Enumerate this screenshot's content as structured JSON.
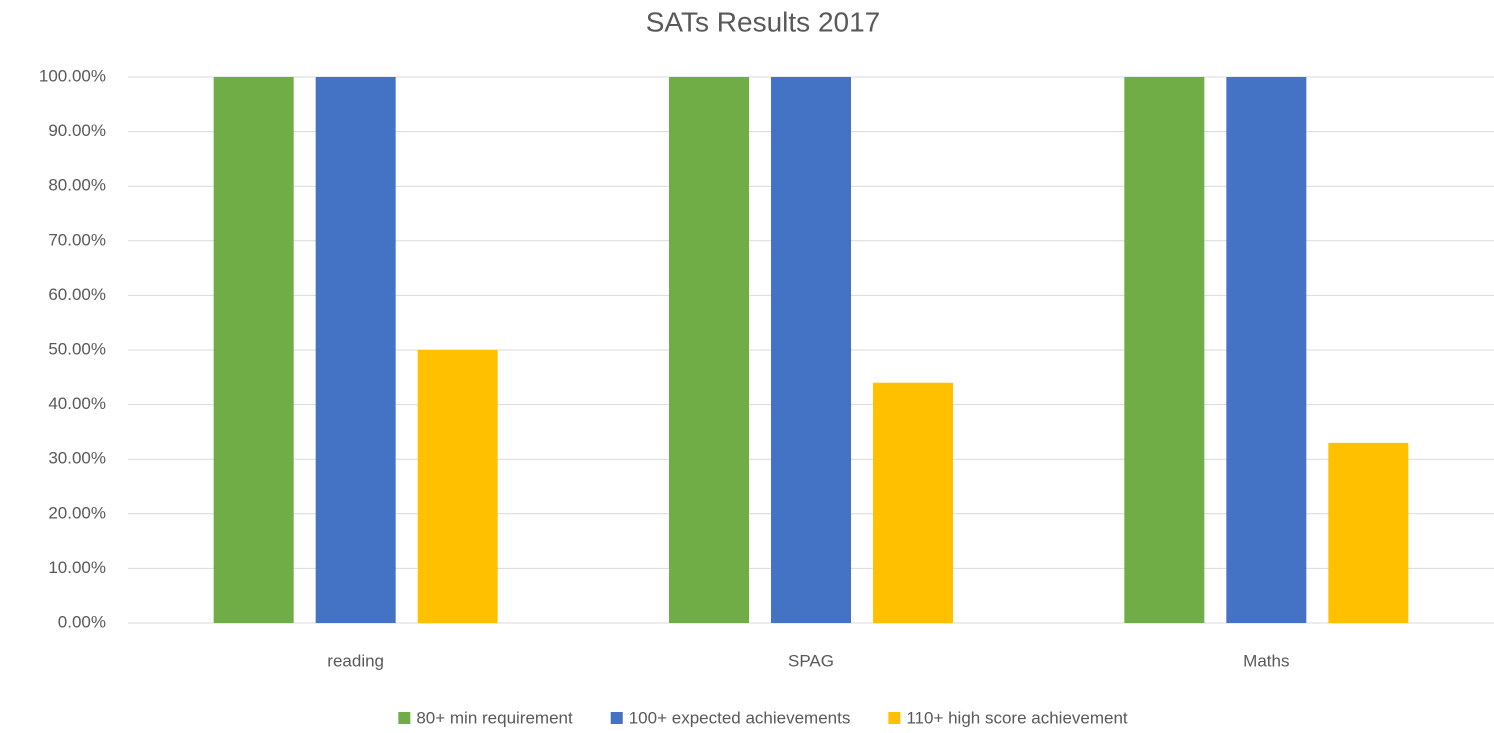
{
  "chart_data": {
    "type": "bar",
    "title": "SATs Results 2017",
    "categories": [
      "reading",
      "SPAG",
      "Maths"
    ],
    "series": [
      {
        "name": "80+ min requirement",
        "color": "#70ad47",
        "values": [
          100,
          100,
          100
        ]
      },
      {
        "name": "100+ expected achievements",
        "color": "#4472c4",
        "values": [
          100,
          100,
          100
        ]
      },
      {
        "name": "110+ high score achievement",
        "color": "#ffc000",
        "values": [
          50,
          44,
          33
        ]
      }
    ],
    "ylim": [
      0,
      100
    ],
    "yticks": [
      {
        "value": 0,
        "label": "0.00%"
      },
      {
        "value": 10,
        "label": "10.00%"
      },
      {
        "value": 20,
        "label": "20.00%"
      },
      {
        "value": 30,
        "label": "30.00%"
      },
      {
        "value": 40,
        "label": "40.00%"
      },
      {
        "value": 50,
        "label": "50.00%"
      },
      {
        "value": 60,
        "label": "60.00%"
      },
      {
        "value": 70,
        "label": "70.00%"
      },
      {
        "value": 80,
        "label": "80.00%"
      },
      {
        "value": 90,
        "label": "90.00%"
      },
      {
        "value": 100,
        "label": "100.00%"
      }
    ],
    "grid": true,
    "legend": "bottom"
  }
}
